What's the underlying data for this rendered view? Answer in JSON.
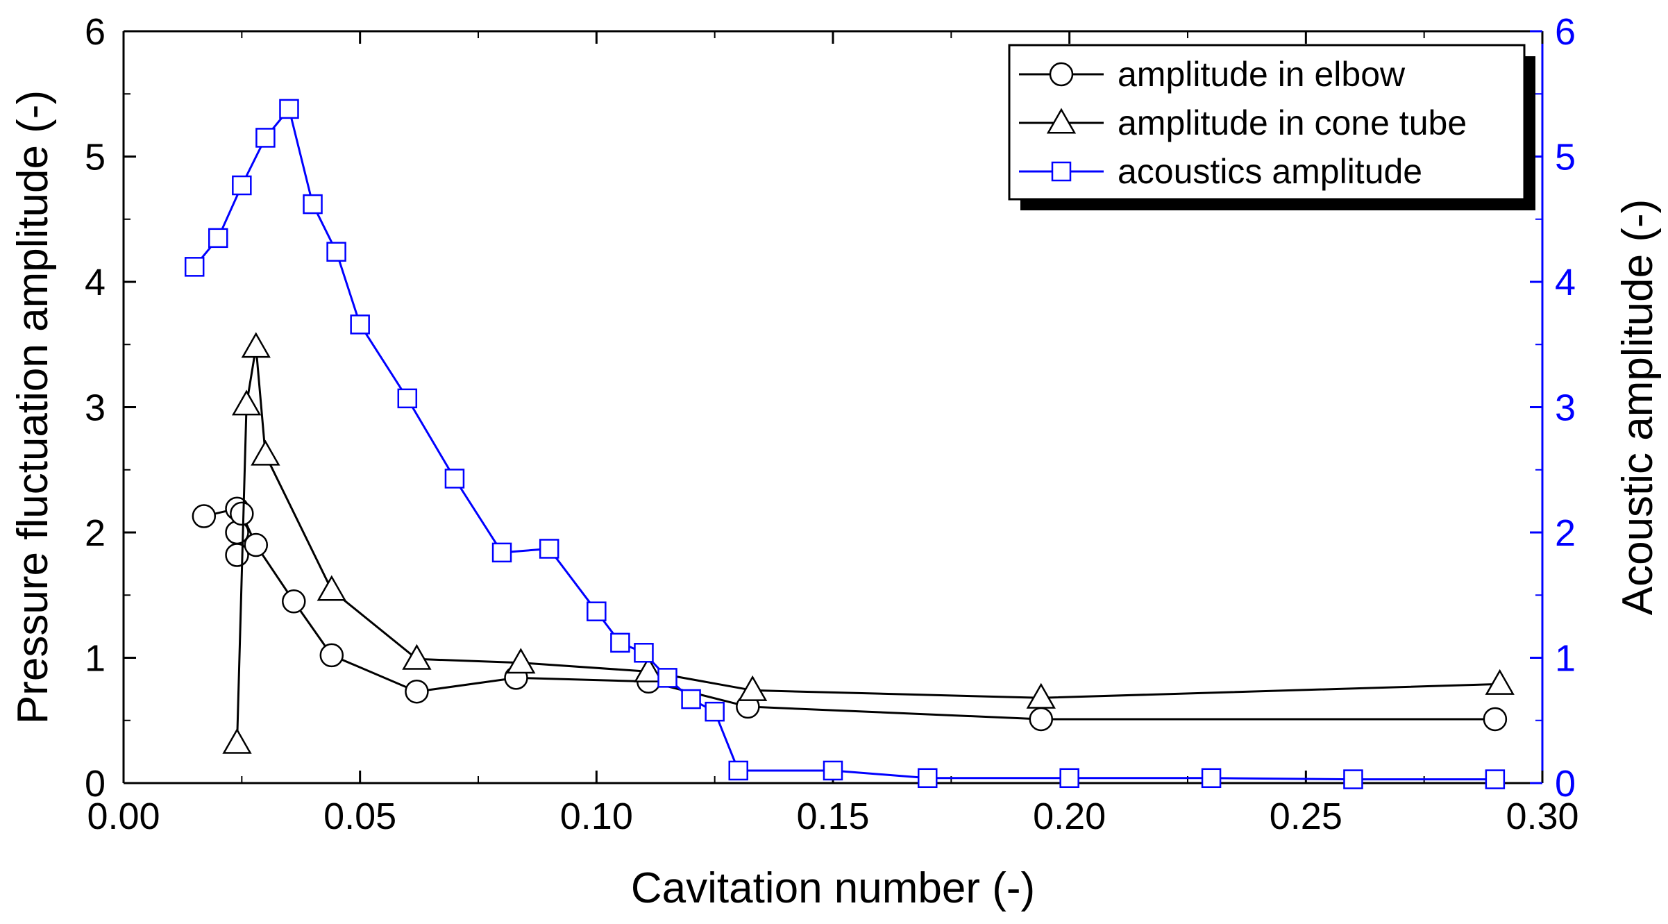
{
  "chart_data": {
    "type": "line",
    "xlabel": "Cavitation number (-)",
    "ylabel_left": "Pressure fluctuation amplitude (-)",
    "ylabel_right": "Acoustic amplitude (-)",
    "xlim": [
      0.0,
      0.3
    ],
    "ylim_left": [
      0,
      6
    ],
    "ylim_right": [
      0,
      6
    ],
    "x_ticks": [
      "0.00",
      "0.05",
      "0.10",
      "0.15",
      "0.20",
      "0.25",
      "0.30"
    ],
    "y_ticks_left": [
      "0",
      "1",
      "2",
      "3",
      "4",
      "5",
      "6"
    ],
    "y_ticks_right": [
      "0",
      "1",
      "2",
      "3",
      "4",
      "5",
      "6"
    ],
    "grid": false,
    "legend_position": "top-right",
    "colors": {
      "black": "#000000",
      "blue": "#0000ff"
    },
    "series": [
      {
        "name": "amplitude in elbow",
        "marker": "circle",
        "color": "#000000",
        "axis": "left",
        "x": [
          0.017,
          0.024,
          0.024,
          0.024,
          0.025,
          0.028,
          0.036,
          0.044,
          0.062,
          0.083,
          0.111,
          0.132,
          0.194,
          0.29
        ],
        "y": [
          2.13,
          2.19,
          2.0,
          1.82,
          2.15,
          1.9,
          1.45,
          1.02,
          0.73,
          0.84,
          0.81,
          0.61,
          0.51,
          0.51
        ]
      },
      {
        "name": "amplitude in cone tube",
        "marker": "triangle",
        "color": "#000000",
        "axis": "left",
        "x": [
          0.024,
          0.026,
          0.028,
          0.03,
          0.044,
          0.062,
          0.084,
          0.111,
          0.133,
          0.194,
          0.291
        ],
        "y": [
          0.32,
          3.02,
          3.48,
          2.62,
          1.54,
          0.99,
          0.96,
          0.89,
          0.74,
          0.68,
          0.79
        ]
      },
      {
        "name": "acoustics amplitude",
        "marker": "square",
        "color": "#0000ff",
        "axis": "right",
        "x": [
          0.015,
          0.02,
          0.025,
          0.03,
          0.035,
          0.04,
          0.045,
          0.05,
          0.06,
          0.07,
          0.08,
          0.09,
          0.1,
          0.105,
          0.11,
          0.115,
          0.12,
          0.125,
          0.13,
          0.15,
          0.17,
          0.2,
          0.23,
          0.26,
          0.29
        ],
        "y": [
          4.12,
          4.35,
          4.77,
          5.15,
          5.38,
          4.62,
          4.24,
          3.66,
          3.07,
          2.43,
          1.84,
          1.87,
          1.37,
          1.12,
          1.04,
          0.84,
          0.67,
          0.57,
          0.1,
          0.1,
          0.04,
          0.04,
          0.04,
          0.03,
          0.03
        ]
      }
    ]
  }
}
